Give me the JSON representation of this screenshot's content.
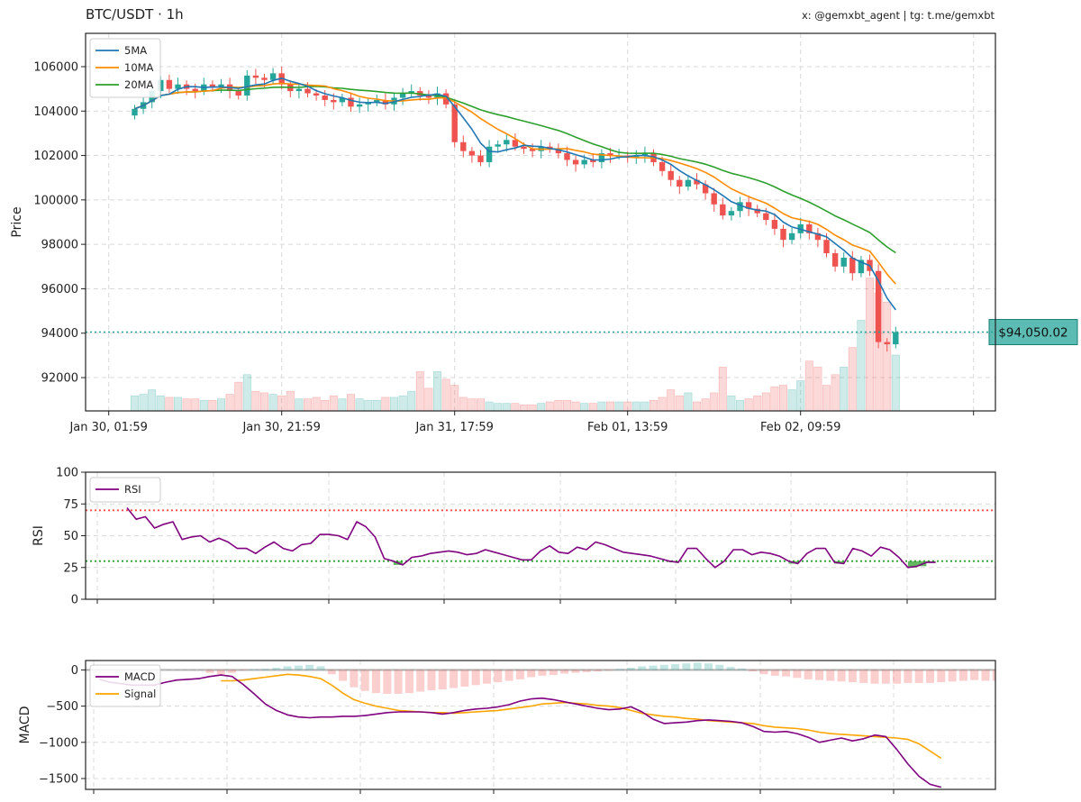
{
  "header": {
    "title": "BTC/USDT · 1h",
    "credit": "x: @gemxbt_agent | tg: t.me/gemxbt"
  },
  "colors": {
    "up": "#26a69a",
    "down": "#ef5350",
    "ma5": "#1f77b4",
    "ma10": "#ff8c00",
    "ma20": "#2ca02c",
    "rsi": "#800080",
    "macd": "#800080",
    "signal": "#ffa500",
    "overbought": "#ff4d4d",
    "oversold": "#2ca02c",
    "price_line": "#26a69a"
  },
  "chart_data": [
    {
      "type": "candlestick",
      "ylabel": "Price",
      "ylim": [
        90500,
        107500
      ],
      "yticks": [
        92000,
        94000,
        96000,
        98000,
        100000,
        102000,
        104000,
        106000
      ],
      "ytick_labels": [
        "92000",
        "94000",
        "96000",
        "98000",
        "100000",
        "102000",
        "104000",
        "106000"
      ],
      "xtick_labels": [
        "Jan 30, 01:59",
        "Jan 30, 21:59",
        "Jan 31, 17:59",
        "Feb 01, 13:59",
        "Feb 02, 09:59"
      ],
      "xtick_index": [
        -3,
        17,
        37,
        57,
        77
      ],
      "legend": [
        "5MA",
        "10MA",
        "20MA"
      ],
      "legend_loc": "upper-left",
      "current_price": 94050.02,
      "current_price_label": "$94,050.02",
      "close": [
        104100,
        104400,
        104900,
        105400,
        105000,
        105200,
        105000,
        104900,
        105200,
        105100,
        105200,
        104900,
        104700,
        105600,
        105500,
        105400,
        105700,
        105200,
        104900,
        105000,
        104800,
        104700,
        104500,
        104400,
        104600,
        104200,
        104300,
        104400,
        104500,
        104300,
        104600,
        104800,
        104900,
        104700,
        104600,
        104800,
        104300,
        102600,
        102200,
        102000,
        101700,
        102400,
        102500,
        102700,
        102400,
        102300,
        102200,
        102400,
        102300,
        102100,
        101800,
        101600,
        101800,
        101700,
        102100,
        102000,
        102000,
        101900,
        102000,
        102100,
        101700,
        101300,
        100900,
        100600,
        100900,
        100700,
        100300,
        99800,
        99300,
        99500,
        99900,
        99600,
        99400,
        99100,
        98700,
        98200,
        98500,
        98900,
        98500,
        98200,
        97600,
        97000,
        97400,
        96700,
        97300,
        96800,
        93600,
        93500,
        94050
      ],
      "volume": [
        0.1,
        0.11,
        0.14,
        0.1,
        0.09,
        0.09,
        0.08,
        0.08,
        0.07,
        0.07,
        0.08,
        0.11,
        0.19,
        0.24,
        0.13,
        0.12,
        0.11,
        0.1,
        0.13,
        0.08,
        0.08,
        0.09,
        0.07,
        0.1,
        0.08,
        0.11,
        0.08,
        0.07,
        0.07,
        0.09,
        0.09,
        0.1,
        0.13,
        0.26,
        0.15,
        0.26,
        0.21,
        0.17,
        0.09,
        0.08,
        0.08,
        0.06,
        0.05,
        0.05,
        0.05,
        0.04,
        0.04,
        0.05,
        0.06,
        0.07,
        0.07,
        0.06,
        0.05,
        0.05,
        0.06,
        0.06,
        0.06,
        0.06,
        0.06,
        0.06,
        0.07,
        0.09,
        0.14,
        0.1,
        0.12,
        0.06,
        0.08,
        0.12,
        0.29,
        0.1,
        0.07,
        0.08,
        0.1,
        0.12,
        0.16,
        0.17,
        0.14,
        0.2,
        0.33,
        0.29,
        0.17,
        0.24,
        0.29,
        0.42,
        0.6,
        0.88,
        0.78,
        0.72,
        0.37
      ]
    },
    {
      "type": "line",
      "ylabel": "RSI",
      "ylim": [
        0,
        100
      ],
      "yticks": [
        0,
        25,
        50,
        75,
        100
      ],
      "ytick_labels": [
        "0",
        "25",
        "50",
        "75",
        "100"
      ],
      "legend": [
        "RSI"
      ],
      "overbought": 70,
      "oversold": 30,
      "values": [
        72,
        63,
        65,
        56,
        59,
        61,
        47,
        49,
        50,
        45,
        48,
        45,
        40,
        40,
        36,
        41,
        45,
        40,
        38,
        43,
        44,
        51,
        51,
        50,
        47,
        61,
        57,
        49,
        32,
        30,
        27,
        33,
        34,
        36,
        37,
        38,
        37,
        35,
        36,
        39,
        37,
        35,
        33,
        31,
        31,
        38,
        42,
        37,
        36,
        41,
        39,
        45,
        43,
        40,
        37,
        36,
        35,
        34,
        32,
        30,
        29,
        40,
        40,
        32,
        25,
        30,
        39,
        39,
        35,
        37,
        36,
        34,
        30,
        28,
        36,
        40,
        40,
        29,
        28,
        40,
        38,
        34,
        41,
        39,
        33,
        25,
        26,
        29,
        29
      ]
    },
    {
      "type": "line+bar",
      "ylabel": "MACD",
      "ylim": [
        -1650,
        130
      ],
      "yticks": [
        -1500,
        -1000,
        -500,
        0
      ],
      "ytick_labels": [
        "−1500",
        "−1000",
        "−500",
        "0"
      ],
      "legend": [
        "MACD",
        "Signal"
      ],
      "macd": [
        -130,
        -170,
        -190,
        -210,
        -210,
        -210,
        -170,
        -140,
        -130,
        -120,
        -90,
        -70,
        -90,
        -200,
        -330,
        -470,
        -560,
        -620,
        -650,
        -660,
        -650,
        -650,
        -640,
        -640,
        -630,
        -610,
        -590,
        -580,
        -580,
        -580,
        -590,
        -610,
        -590,
        -560,
        -540,
        -530,
        -510,
        -480,
        -430,
        -400,
        -390,
        -410,
        -440,
        -470,
        -500,
        -530,
        -550,
        -540,
        -510,
        -580,
        -680,
        -740,
        -730,
        -720,
        -700,
        -690,
        -700,
        -710,
        -730,
        -780,
        -850,
        -860,
        -850,
        -880,
        -930,
        -1000,
        -970,
        -940,
        -980,
        -950,
        -900,
        -920,
        -1100,
        -1300,
        -1470,
        -1580,
        -1620
      ],
      "signal": [
        -150,
        -150,
        -140,
        -120,
        -100,
        -80,
        -60,
        -70,
        -90,
        -120,
        -210,
        -320,
        -410,
        -460,
        -500,
        -530,
        -560,
        -570,
        -580,
        -590,
        -590,
        -600,
        -590,
        -580,
        -570,
        -560,
        -540,
        -520,
        -500,
        -470,
        -460,
        -450,
        -460,
        -470,
        -490,
        -500,
        -520,
        -560,
        -600,
        -620,
        -640,
        -650,
        -670,
        -680,
        -700,
        -710,
        -720,
        -730,
        -740,
        -770,
        -790,
        -800,
        -810,
        -830,
        -860,
        -880,
        -890,
        -900,
        -910,
        -920,
        -930,
        -940,
        -960,
        -1020,
        -1120,
        -1220
      ],
      "signal_start": 11,
      "histogram": [
        -40,
        -60,
        -40,
        -10,
        10,
        15,
        30,
        50,
        60,
        70,
        50,
        -60,
        -150,
        -240,
        -290,
        -320,
        -330,
        -330,
        -320,
        -300,
        -280,
        -270,
        -250,
        -230,
        -210,
        -190,
        -170,
        -150,
        -130,
        -100,
        -80,
        -70,
        -50,
        -40,
        -30,
        -20,
        -10,
        15,
        30,
        50,
        60,
        70,
        80,
        90,
        100,
        90,
        70,
        40,
        20,
        -20,
        -60,
        -80,
        -90,
        -110,
        -130,
        -140,
        -150,
        -160,
        -170,
        -180,
        -190,
        -190,
        -190,
        -180,
        -180,
        -180,
        -170,
        -160,
        -150,
        -140,
        -150,
        -150,
        -200,
        -260,
        -300,
        -370,
        -380,
        -360,
        -320
      ]
    }
  ]
}
